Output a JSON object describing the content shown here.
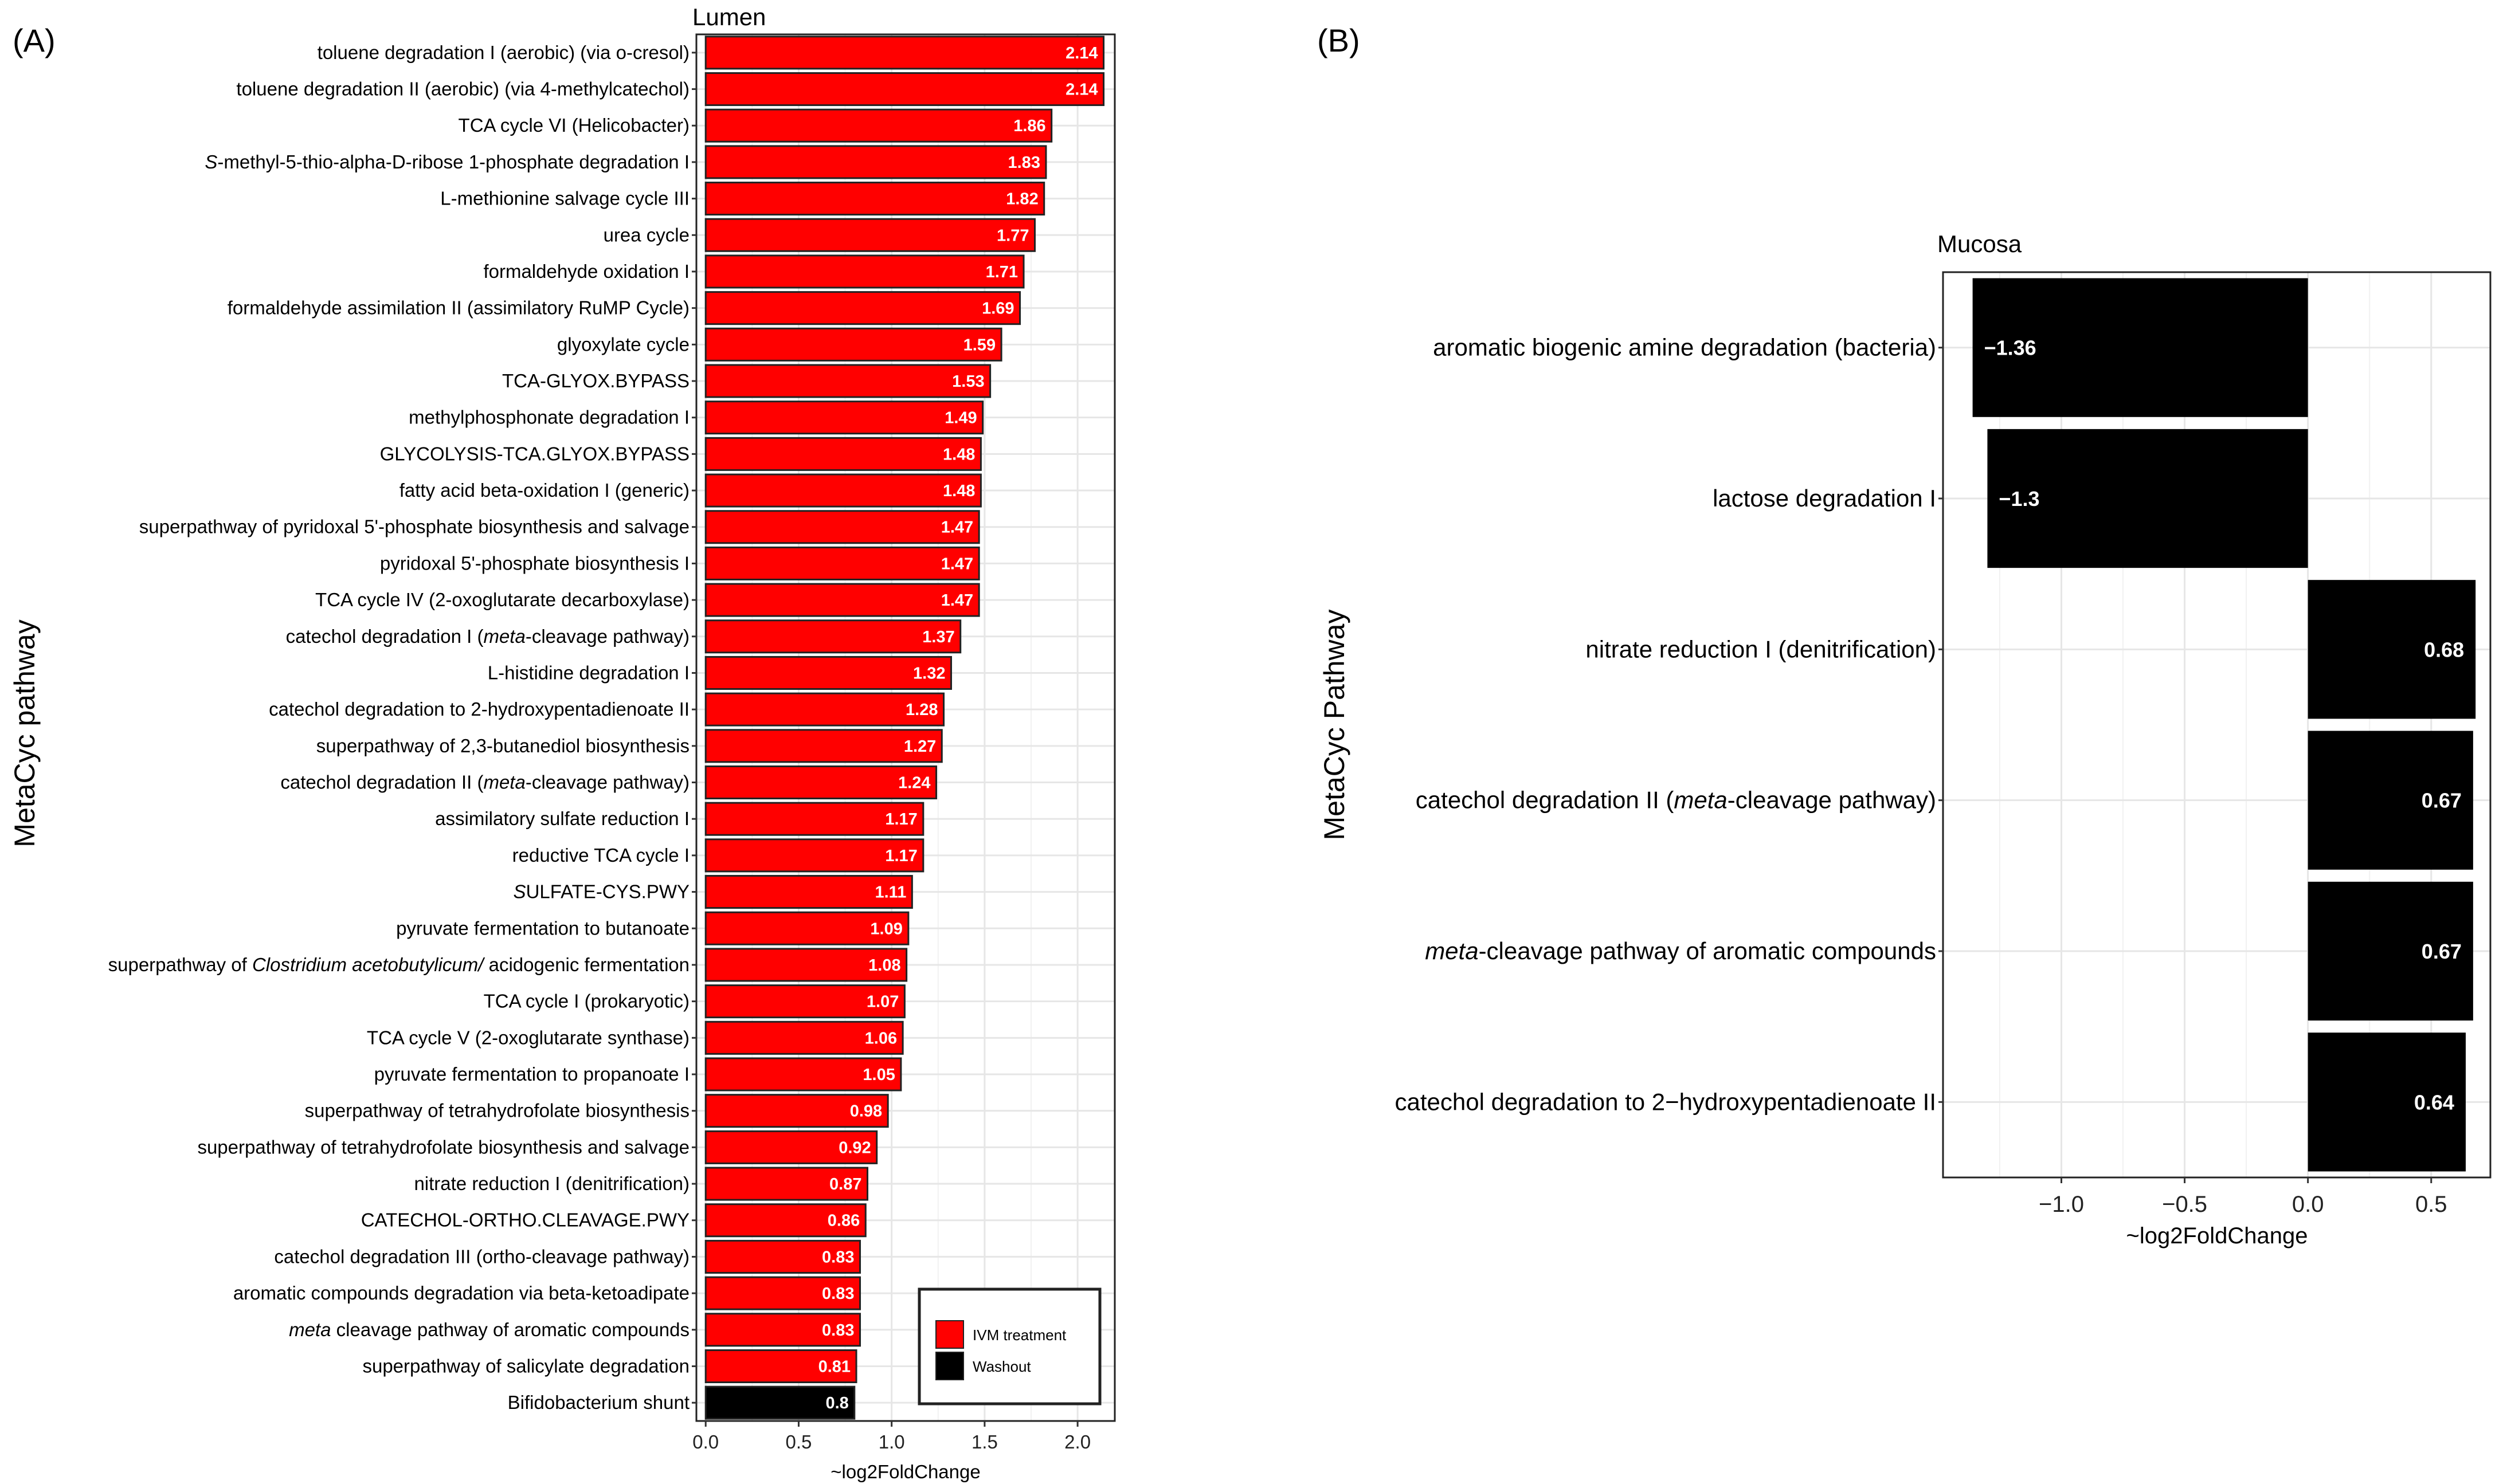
{
  "panels": {
    "a": {
      "label": "(A)"
    },
    "b": {
      "label": "(B)"
    }
  },
  "chart_data": [
    {
      "type": "bar",
      "orientation": "horizontal",
      "title": "Lumen",
      "xlabel": "~log2FoldChange",
      "ylabel": "MetaCyc pathway",
      "xlim": [
        -0.05,
        2.2
      ],
      "xticks": [
        "0.0",
        "0.5",
        "1.0",
        "1.5",
        "2.0"
      ],
      "xtick_values": [
        0,
        0.5,
        1.0,
        1.5,
        2.0
      ],
      "grid": true,
      "legend": {
        "position": "bottom-right",
        "entries": [
          {
            "name": "IVM treatment",
            "color": "#ff0000"
          },
          {
            "name": "Washout",
            "color": "#000000"
          }
        ]
      },
      "categories": [
        "toluene degradation I (aerobic) (via o-cresol)",
        "toluene degradation II (aerobic) (via 4-methylcatechol)",
        "TCA cycle VI (Helicobacter)",
        "S-methyl-5-thio-alpha-D-ribose 1-phosphate degradation I",
        "L-methionine salvage cycle III",
        "urea cycle",
        "formaldehyde oxidation I",
        "formaldehyde assimilation II (assimilatory RuMP Cycle)",
        "glyoxylate cycle",
        "TCA-GLYOX.BYPASS",
        "methylphosphonate degradation I",
        "GLYCOLYSIS-TCA.GLYOX.BYPASS",
        "fatty acid beta-oxidation I (generic)",
        "superpathway of pyridoxal 5'-phosphate biosynthesis and salvage",
        "pyridoxal 5'-phosphate biosynthesis I",
        "TCA cycle IV (2-oxoglutarate decarboxylase)",
        "catechol degradation I (meta-cleavage pathway)",
        "L-histidine degradation I",
        "catechol degradation to 2-hydroxypentadienoate II",
        "superpathway of 2,3-butanediol biosynthesis",
        "catechol degradation II (meta-cleavage pathway)",
        "assimilatory sulfate reduction I",
        "reductive TCA cycle I",
        "SULFATE-CYS.PWY",
        "pyruvate fermentation to butanoate",
        "superpathway of Clostridium acetobutylicum/ acidogenic fermentation",
        "TCA cycle I (prokaryotic)",
        "TCA cycle V (2-oxoglutarate synthase)",
        "pyruvate fermentation to propanoate I",
        "superpathway of tetrahydrofolate biosynthesis",
        "superpathway of tetrahydrofolate biosynthesis and salvage",
        "nitrate reduction I (denitrification)",
        "CATECHOL-ORTHO.CLEAVAGE.PWY",
        "catechol degradation III (ortho-cleavage pathway)",
        "aromatic compounds degradation via beta-ketoadipate",
        "meta cleavage pathway of aromatic compounds",
        "superpathway of salicylate degradation",
        "Bifidobacterium shunt"
      ],
      "values": [
        2.14,
        2.14,
        1.86,
        1.83,
        1.82,
        1.77,
        1.71,
        1.69,
        1.59,
        1.53,
        1.49,
        1.48,
        1.48,
        1.47,
        1.47,
        1.47,
        1.37,
        1.32,
        1.28,
        1.27,
        1.24,
        1.17,
        1.17,
        1.11,
        1.09,
        1.08,
        1.07,
        1.06,
        1.05,
        0.98,
        0.92,
        0.87,
        0.86,
        0.83,
        0.83,
        0.83,
        0.81,
        0.8
      ],
      "value_labels": [
        "2.14",
        "2.14",
        "1.86",
        "1.83",
        "1.82",
        "1.77",
        "1.71",
        "1.69",
        "1.59",
        "1.53",
        "1.49",
        "1.48",
        "1.48",
        "1.47",
        "1.47",
        "1.47",
        "1.37",
        "1.32",
        "1.28",
        "1.27",
        "1.24",
        "1.17",
        "1.17",
        "1.11",
        "1.09",
        "1.08",
        "1.07",
        "1.06",
        "1.05",
        "0.98",
        "0.92",
        "0.87",
        "0.86",
        "0.83",
        "0.83",
        "0.83",
        "0.81",
        "0.8"
      ],
      "groups": [
        "IVM treatment",
        "IVM treatment",
        "IVM treatment",
        "IVM treatment",
        "IVM treatment",
        "IVM treatment",
        "IVM treatment",
        "IVM treatment",
        "IVM treatment",
        "IVM treatment",
        "IVM treatment",
        "IVM treatment",
        "IVM treatment",
        "IVM treatment",
        "IVM treatment",
        "IVM treatment",
        "IVM treatment",
        "IVM treatment",
        "IVM treatment",
        "IVM treatment",
        "IVM treatment",
        "IVM treatment",
        "IVM treatment",
        "IVM treatment",
        "IVM treatment",
        "IVM treatment",
        "IVM treatment",
        "IVM treatment",
        "IVM treatment",
        "IVM treatment",
        "IVM treatment",
        "IVM treatment",
        "IVM treatment",
        "IVM treatment",
        "IVM treatment",
        "IVM treatment",
        "IVM treatment",
        "Washout"
      ],
      "italic_terms": [
        "S",
        "meta",
        "Clostridium acetobutylicum/"
      ]
    },
    {
      "type": "bar",
      "orientation": "horizontal",
      "title": "Mucosa",
      "xlabel": "~log2FoldChange",
      "ylabel": "MetaCyc Pathway",
      "xlim": [
        -1.48,
        0.74
      ],
      "xticks": [
        "−1.0",
        "−0.5",
        "0.0",
        "0.5"
      ],
      "xtick_values": [
        -1.0,
        -0.5,
        0.0,
        0.5
      ],
      "grid": true,
      "categories": [
        "aromatic biogenic amine degradation (bacteria)",
        "lactose degradation I",
        "nitrate reduction I (denitrification)",
        "catechol degradation II (meta-cleavage pathway)",
        "meta-cleavage pathway of aromatic compounds",
        "catechol degradation to 2−hydroxypentadienoate II"
      ],
      "values": [
        -1.36,
        -1.3,
        0.68,
        0.67,
        0.67,
        0.64
      ],
      "value_labels": [
        "−1.36",
        "−1.3",
        "0.68",
        "0.67",
        "0.67",
        "0.64"
      ],
      "bar_color": "#000000",
      "italic_terms": [
        "meta"
      ]
    }
  ]
}
